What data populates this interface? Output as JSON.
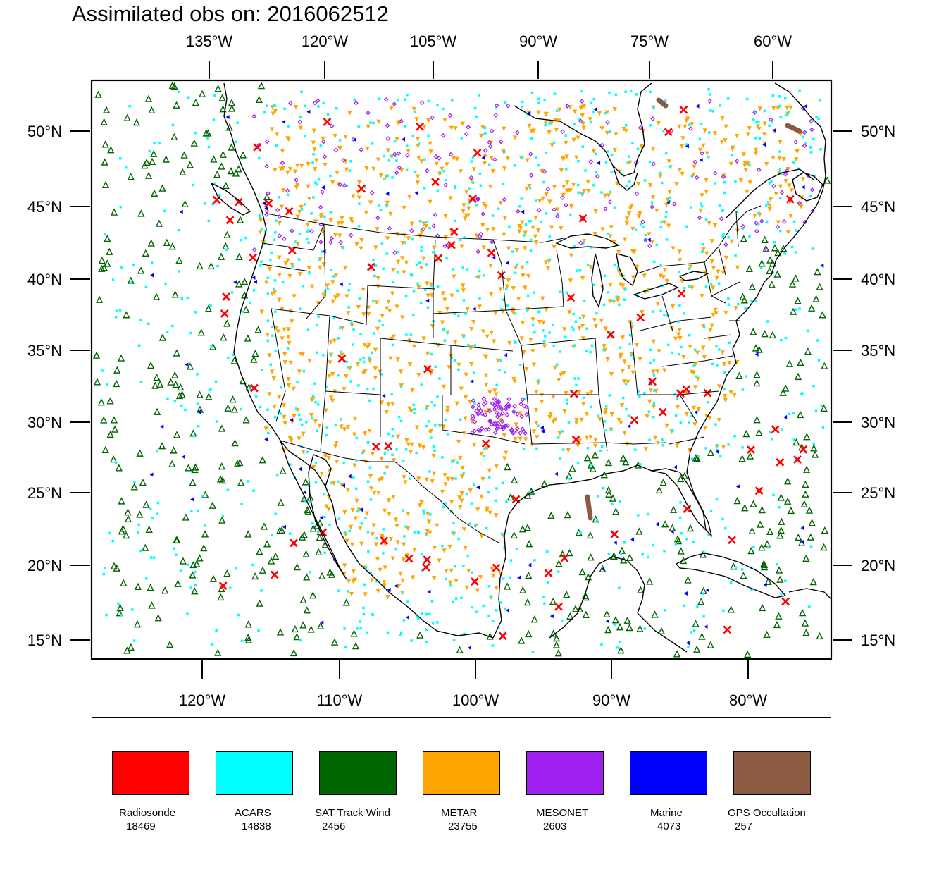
{
  "title": "Assimilated obs on: 2016062512",
  "map": {
    "top_axis_labels": [
      "135°W",
      "120°W",
      "105°W",
      "90°W",
      "75°W",
      "60°W"
    ],
    "bottom_axis_labels": [
      "120°W",
      "110°W",
      "100°W",
      "90°W",
      "80°W"
    ],
    "lat_labels": [
      "50°N",
      "45°N",
      "40°N",
      "35°N",
      "30°N",
      "25°N",
      "20°N",
      "15°N"
    ]
  },
  "legend": [
    {
      "label": "Radiosonde",
      "count": "18469",
      "color": "#ff0000"
    },
    {
      "label": "ACARS",
      "count": "14838",
      "color": "#00ffff"
    },
    {
      "label": "SAT Track Wind",
      "count": "2456",
      "color": "#006400"
    },
    {
      "label": "METAR",
      "count": "23755",
      "color": "#ffa500"
    },
    {
      "label": "MESONET",
      "count": "2603",
      "color": "#a020f0"
    },
    {
      "label": "Marine",
      "count": "4073",
      "color": "#0000ff"
    },
    {
      "label": "GPS Occultation",
      "count": "257",
      "color": "#8b5a43"
    }
  ]
}
